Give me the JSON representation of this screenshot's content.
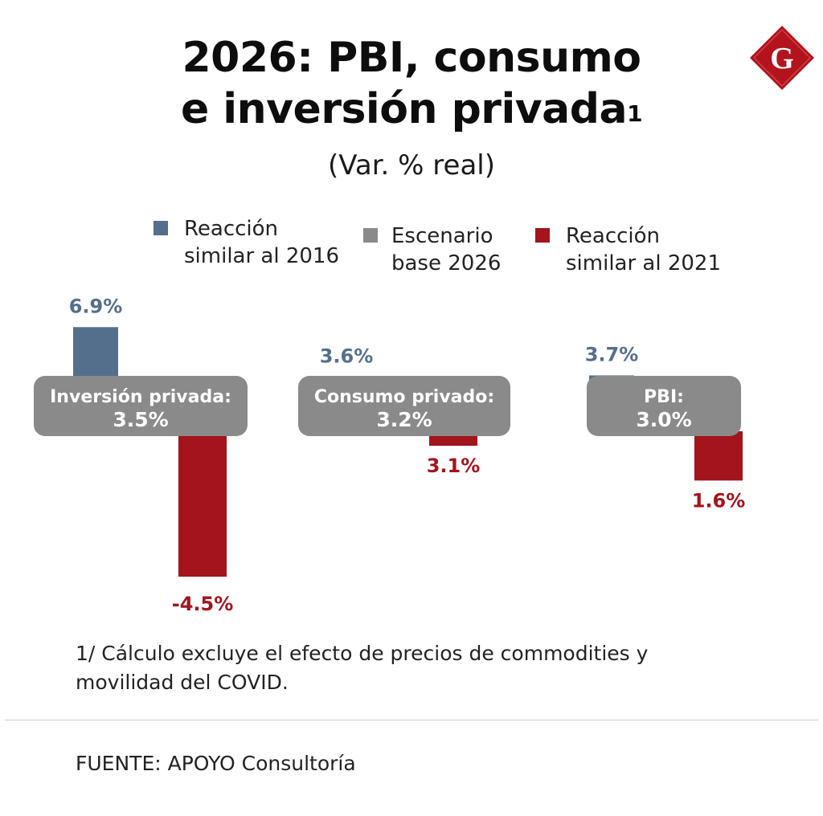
{
  "chart_data": {
    "type": "bar",
    "title_line1": "2026: PBI, consumo",
    "title_line2": "e inversión privada",
    "title_sup": "1",
    "subtitle": "(Var. % real)",
    "series": [
      {
        "name": "Reacción\nsimilar al 2016",
        "color": "#546f8c"
      },
      {
        "name": "Escenario\nbase 2026",
        "color": "#8a8a8a"
      },
      {
        "name": "Reacción\nsimilar al 2021",
        "color": "#a3141c"
      }
    ],
    "groups": [
      {
        "name": "Inversión privada:",
        "base": 3.5,
        "base_label": "3.5%",
        "high": 6.9,
        "high_label": "6.9%",
        "low": -4.5,
        "low_label": "-4.5%"
      },
      {
        "name": "Consumo privado:",
        "base": 3.2,
        "base_label": "3.2%",
        "high": 3.6,
        "high_label": "3.6%",
        "low": 3.1,
        "low_label": "3.1%"
      },
      {
        "name": "PBI:",
        "base": 3.0,
        "base_label": "3.0%",
        "high": 3.7,
        "high_label": "3.7%",
        "low": 1.6,
        "low_label": "1.6%"
      }
    ],
    "label_colors": {
      "high": "#546f8c",
      "low": "#a3141c",
      "box": "#8a8a8a",
      "box_text": "#ffffff"
    }
  },
  "logo": {
    "letter": "G",
    "color": "#b3131c"
  },
  "footnote": "1/ Cálculo excluye el efecto de precios de commodities y movilidad del COVID.",
  "source": "FUENTE: APOYO Consultoría"
}
